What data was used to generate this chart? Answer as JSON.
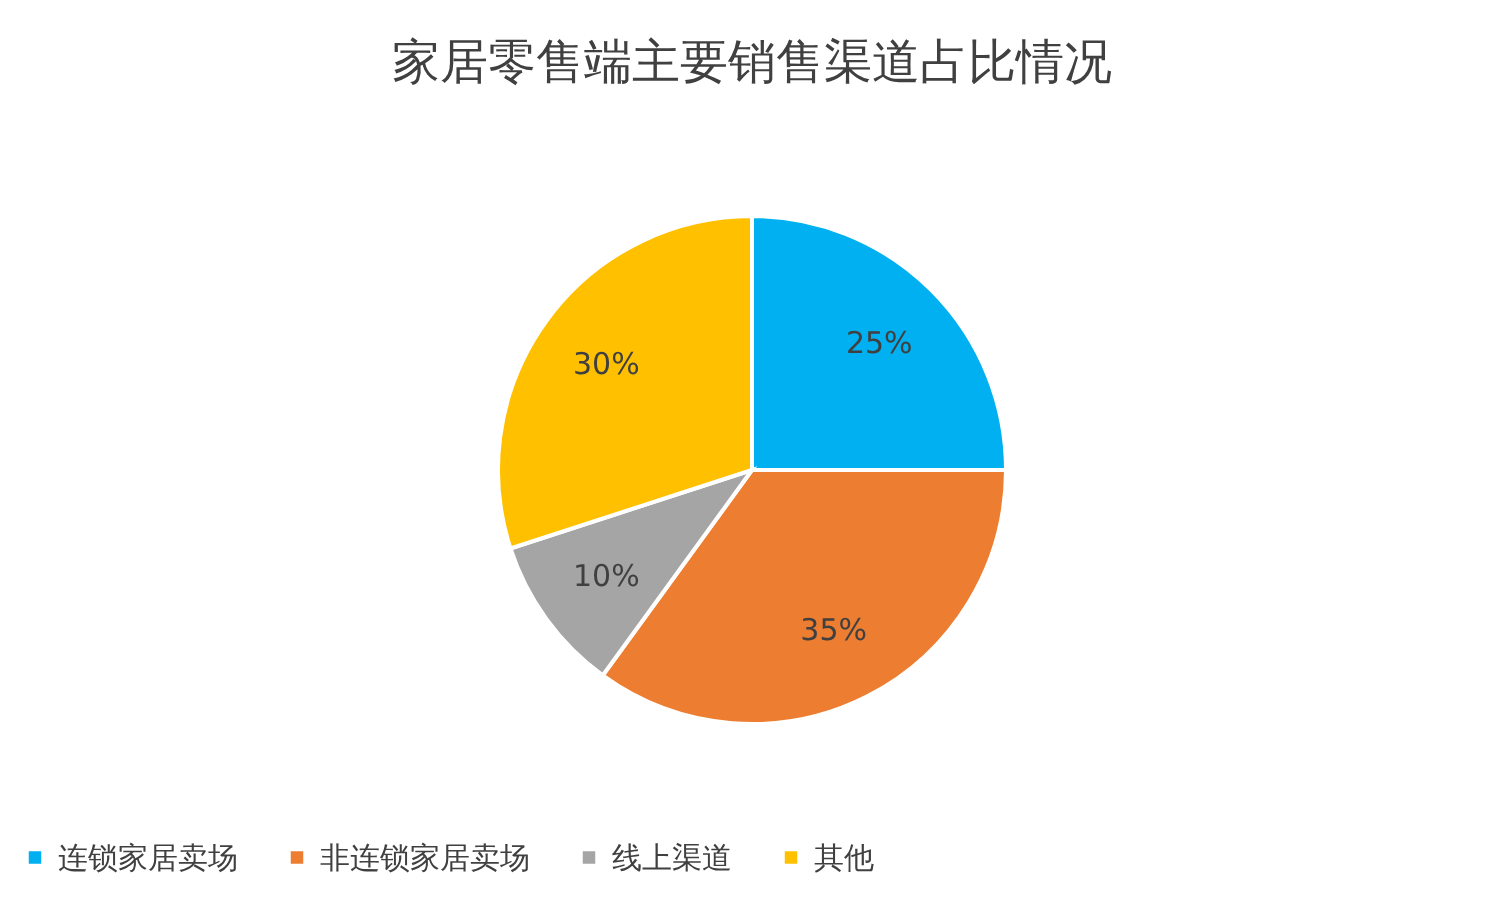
{
  "chart_data": {
    "type": "pie",
    "title": "家居零售端主要销售渠道占比情况",
    "categories": [
      "连锁家居卖场",
      "非连锁家居卖场",
      "线上渠道",
      "其他"
    ],
    "values": [
      25,
      35,
      10,
      30
    ],
    "colors": [
      "#00b0f0",
      "#ed7d31",
      "#a5a5a5",
      "#ffc000"
    ],
    "value_labels": [
      "25%",
      "35%",
      "10%",
      "30%"
    ],
    "legend": "bottom"
  }
}
